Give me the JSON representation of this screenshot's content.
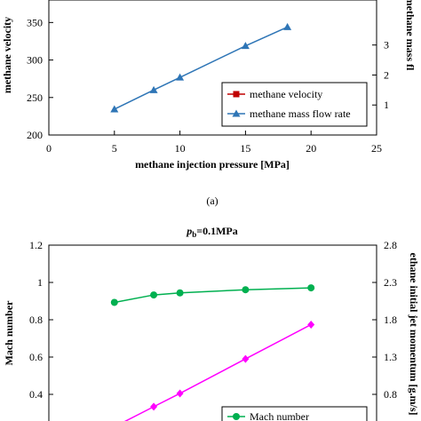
{
  "chart_data": [
    {
      "type": "line",
      "caption": "(a)",
      "xlabel": "methane injection pressure [MPa]",
      "ylabel": "methane velocity",
      "y2label": "methane mass fl",
      "xlim": [
        0,
        25
      ],
      "ylim": [
        200,
        380
      ],
      "y2lim": [
        0,
        4.5
      ],
      "xticks": [
        0,
        5,
        10,
        15,
        20,
        25
      ],
      "yticks": [
        200,
        250,
        300,
        350
      ],
      "y2ticks": [
        1,
        2,
        3
      ],
      "legend_position": "bottom-right",
      "series": [
        {
          "name": "methane velocity",
          "color": "#c00000",
          "marker": "square",
          "axis": "left",
          "x": [],
          "y": []
        },
        {
          "name": "methane mass flow rate",
          "color": "#2e75b6",
          "marker": "triangle",
          "axis": "right",
          "x": [
            5,
            8,
            10,
            15,
            18.2
          ],
          "y": [
            0.86,
            1.5,
            1.92,
            2.97,
            3.6
          ]
        }
      ]
    },
    {
      "type": "line",
      "title_italic": "p",
      "title_sub": "b",
      "title_rest": "=0.1MPa",
      "xlabel": "",
      "ylabel": "Mach number",
      "y2label": "ethane initial jet momentum [g.m/s]",
      "xlim": [
        0,
        25
      ],
      "ylim": [
        0.2,
        1.2
      ],
      "y2lim": [
        0.3,
        2.8
      ],
      "yticks": [
        0.2,
        0.4,
        0.6,
        0.8,
        1.0,
        1.2
      ],
      "ytick_labels": [
        "0.2",
        "0.4",
        "0.6",
        "0.8",
        "1",
        "1.2"
      ],
      "y2ticks": [
        0.3,
        0.8,
        1.3,
        1.8,
        2.3,
        2.8
      ],
      "y2tick_labels": [
        "0.3",
        "0.8",
        "1.3",
        "1.8",
        "2.3",
        "2.8"
      ],
      "legend_position": "bottom-right",
      "series": [
        {
          "name": "Mach number",
          "color": "#00b050",
          "marker": "circle",
          "axis": "left",
          "x": [
            5,
            8,
            10,
            15,
            20
          ],
          "y": [
            0.893,
            0.933,
            0.944,
            0.961,
            0.971
          ]
        },
        {
          "name": "",
          "color": "#ff00ff",
          "marker": "diamond",
          "axis": "left",
          "x": [
            5,
            8,
            10,
            15,
            20
          ],
          "y": [
            0.226,
            0.334,
            0.405,
            0.59,
            0.774
          ]
        }
      ]
    }
  ]
}
